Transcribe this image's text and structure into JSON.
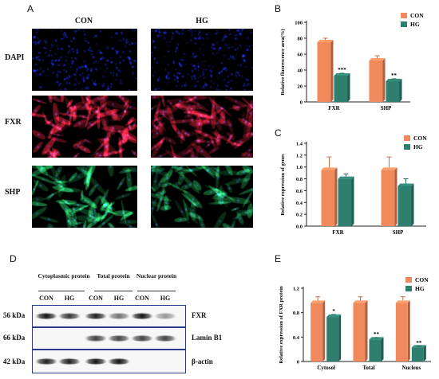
{
  "panels": {
    "a": "A",
    "b": "B",
    "c": "C",
    "d": "D",
    "e": "E"
  },
  "panel_a": {
    "columns": [
      "CON",
      "HG"
    ],
    "rows": [
      "DAPI",
      "FXR",
      "SHP"
    ],
    "stain_colors": {
      "DAPI": "#1f2fbf",
      "FXR": "#d8223c",
      "SHP": "#25b35a"
    }
  },
  "chart_data": [
    {
      "id": "B",
      "type": "bar",
      "categories": [
        "FXR",
        "SHP"
      ],
      "series": [
        {
          "name": "CON",
          "values": [
            75,
            52
          ],
          "errors": [
            5,
            6
          ],
          "color": "#f08a5d"
        },
        {
          "name": "HG",
          "values": [
            33,
            26
          ],
          "errors": [
            3,
            3
          ],
          "color": "#2f7f6f"
        }
      ],
      "significance": [
        [
          "",
          "***"
        ],
        [
          "",
          "**"
        ]
      ],
      "ylabel": "Relative fluorescence area(%)",
      "ylim": [
        0,
        100
      ],
      "yticks": [
        0,
        20,
        40,
        60,
        80,
        100
      ],
      "legend": "top-right"
    },
    {
      "id": "C",
      "type": "bar",
      "categories": [
        "FXR",
        "SHP"
      ],
      "series": [
        {
          "name": "CON",
          "values": [
            0.95,
            0.95
          ],
          "errors": [
            0.22,
            0.22
          ],
          "color": "#f08a5d"
        },
        {
          "name": "HG",
          "values": [
            0.8,
            0.68
          ],
          "errors": [
            0.08,
            0.12
          ],
          "color": "#2f7f6f"
        }
      ],
      "ylabel": "Relative expression of genes",
      "ylim": [
        0,
        1.4
      ],
      "yticks": [
        "0.0",
        "0.2",
        "0.4",
        "0.6",
        "0.8",
        "1.0",
        "1.2",
        "1.4"
      ],
      "legend": "top-right"
    },
    {
      "id": "E",
      "type": "bar",
      "categories": [
        "Cytosol",
        "Total",
        "Nucleus"
      ],
      "series": [
        {
          "name": "CON",
          "values": [
            0.96,
            0.96,
            0.96
          ],
          "errors": [
            0.1,
            0.1,
            0.1
          ],
          "color": "#f08a5d"
        },
        {
          "name": "HG",
          "values": [
            0.73,
            0.36,
            0.23
          ],
          "errors": [
            0.04,
            0.03,
            0.02
          ],
          "color": "#2f7f6f"
        }
      ],
      "significance": [
        [
          "",
          "*"
        ],
        [
          "",
          "**"
        ],
        [
          "",
          "**"
        ]
      ],
      "ylabel": "Relative expression of FXR protein",
      "ylim": [
        0,
        1.2
      ],
      "yticks": [
        "0",
        "0.4",
        "0.8",
        "1.2"
      ],
      "legend": "top-right"
    }
  ],
  "panel_d": {
    "groups": [
      "Cytoplasmic protein",
      "Total protein",
      "Nuclear protein"
    ],
    "lanes": [
      "CON",
      "HG",
      "CON",
      "HG",
      "CON",
      "HG"
    ],
    "bands": [
      {
        "kda": "56 kDa",
        "label": "FXR",
        "intensity": [
          0.95,
          0.8,
          0.9,
          0.55,
          0.95,
          0.4
        ]
      },
      {
        "kda": "66 kDa",
        "label": "Lamin B1",
        "intensity": [
          0,
          0,
          0.75,
          0.75,
          0.75,
          0.75
        ]
      },
      {
        "kda": "42 kDa",
        "label": "β-actin",
        "intensity": [
          0.9,
          0.9,
          0.95,
          0.95,
          0,
          0
        ]
      }
    ]
  }
}
